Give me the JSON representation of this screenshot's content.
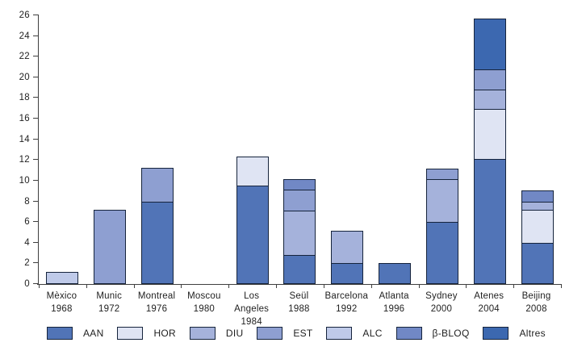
{
  "chart_data": {
    "type": "bar",
    "variant": "stacked",
    "title": "",
    "xlabel": "",
    "ylabel": "",
    "ylim": [
      0,
      26
    ],
    "ytick_step": 2,
    "yticks": [
      0,
      2,
      4,
      6,
      8,
      10,
      12,
      14,
      16,
      18,
      20,
      22,
      24,
      26
    ],
    "grid": false,
    "legend_position": "bottom",
    "categories": [
      "Mèxico",
      "Munic",
      "Montreal",
      "Moscou",
      "Los Angeles",
      "Seül",
      "Barcelona",
      "Atlanta",
      "Sydney",
      "Atenes",
      "Beijing"
    ],
    "category_years": [
      "1968",
      "1972",
      "1976",
      "1980",
      "1984",
      "1988",
      "1992",
      "1996",
      "2000",
      "2004",
      "2008"
    ],
    "series": [
      {
        "name": "AAN",
        "color": "#5174b7",
        "values": [
          0,
          0,
          8,
          0,
          9.5,
          2.8,
          2,
          2,
          6,
          12.1,
          4
        ]
      },
      {
        "name": "HOR",
        "color": "#dfe4f3",
        "values": [
          0,
          0,
          0,
          0,
          2.9,
          0,
          0,
          0,
          0,
          4.9,
          3.3
        ]
      },
      {
        "name": "DIU",
        "color": "#a5b2db",
        "values": [
          0,
          0,
          0,
          0,
          0,
          4.4,
          3.2,
          0,
          4.2,
          2,
          0.8
        ]
      },
      {
        "name": "EST",
        "color": "#8e9fd1",
        "values": [
          0,
          7.2,
          3.3,
          0,
          0,
          2.1,
          0,
          0,
          1.1,
          2,
          0
        ]
      },
      {
        "name": "ALC",
        "color": "#bfcae9",
        "values": [
          1.2,
          0,
          0,
          0,
          0,
          0,
          0,
          0,
          0,
          0,
          0
        ]
      },
      {
        "name": "β-BLOQ",
        "color": "#7188c5",
        "values": [
          0,
          0,
          0,
          0,
          0,
          1.1,
          0,
          0,
          0,
          0,
          1.2
        ]
      },
      {
        "name": "Altres",
        "color": "#3c68b0",
        "values": [
          0,
          0,
          0,
          0,
          0,
          0,
          0,
          0,
          0,
          5,
          0
        ]
      }
    ],
    "totals": [
      1.2,
      7.2,
      11.3,
      0,
      12.4,
      10.4,
      5.2,
      2,
      11.3,
      26,
      9.3
    ],
    "segment_border_color": "#16243c",
    "axis_color": "#3f3f3f",
    "background_color": "#ffffff"
  }
}
